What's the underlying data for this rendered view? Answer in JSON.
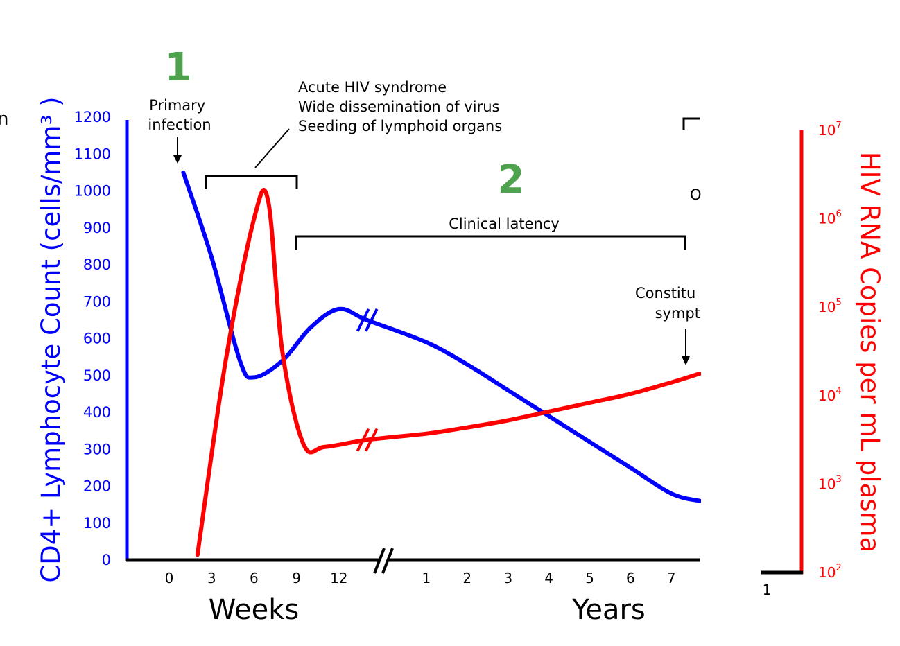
{
  "page": {
    "edge_glyph": "n",
    "step_one": "1",
    "step_two": "2"
  },
  "annotations": {
    "primary_infection": [
      "Primary",
      "infection"
    ],
    "acute": [
      "Acute HIV syndrome",
      "Wide dissemination of virus",
      "Seeding of lymphoid organs"
    ],
    "clinical_latency": "Clinical latency",
    "constitutional": [
      "Constitu",
      "sympt"
    ],
    "cut_right_label": "O",
    "right_fragment_tick": "1"
  },
  "colors": {
    "cd4": "#0000ff",
    "rna": "#ff0000",
    "axis": "#000000",
    "step_numbers": "#4ea24e"
  },
  "chart_data": {
    "type": "line",
    "xlabel_weeks": "Weeks",
    "xlabel_years": "Years",
    "ylabel_left": "CD4+ Lymphocyte Count (cells/mm³ )",
    "ylabel_right": "HIV RNA Copies per mL plasma",
    "x_ticks_weeks": [
      "0",
      "3",
      "6",
      "9",
      "12"
    ],
    "x_ticks_years": [
      "1",
      "2",
      "3",
      "4",
      "5",
      "6",
      "7"
    ],
    "ylim_left": [
      0,
      1200
    ],
    "y_ticks_left": [
      "0",
      "100",
      "200",
      "300",
      "400",
      "500",
      "600",
      "700",
      "800",
      "900",
      "1000",
      "1100",
      "1200"
    ],
    "y_ticks_right": [
      {
        "base": "10",
        "exp": "2"
      },
      {
        "base": "10",
        "exp": "3"
      },
      {
        "base": "10",
        "exp": "4"
      },
      {
        "base": "10",
        "exp": "5"
      },
      {
        "base": "10",
        "exp": "6"
      },
      {
        "base": "10",
        "exp": "7"
      }
    ],
    "series": [
      {
        "key": "cd4",
        "axis": "left",
        "points": [
          {
            "segment": "weeks",
            "x": 1,
            "y": 1050
          },
          {
            "segment": "weeks",
            "x": 3,
            "y": 820
          },
          {
            "segment": "weeks",
            "x": 5,
            "y": 540
          },
          {
            "segment": "weeks",
            "x": 6,
            "y": 495
          },
          {
            "segment": "weeks",
            "x": 8,
            "y": 540
          },
          {
            "segment": "weeks",
            "x": 10,
            "y": 630
          },
          {
            "segment": "weeks",
            "x": 12,
            "y": 680
          },
          {
            "segment": "weeks",
            "x": 14,
            "y": 650
          },
          {
            "segment": "years",
            "x": 1,
            "y": 590
          },
          {
            "segment": "years",
            "x": 2,
            "y": 530
          },
          {
            "segment": "years",
            "x": 3,
            "y": 460
          },
          {
            "segment": "years",
            "x": 4,
            "y": 390
          },
          {
            "segment": "years",
            "x": 5,
            "y": 320
          },
          {
            "segment": "years",
            "x": 6,
            "y": 250
          },
          {
            "segment": "years",
            "x": 7,
            "y": 180
          },
          {
            "segment": "years",
            "x": 7.7,
            "y": 160
          }
        ]
      },
      {
        "key": "rna",
        "axis": "right_log10",
        "points": [
          {
            "segment": "weeks",
            "x": 2,
            "y": 2.2
          },
          {
            "segment": "weeks",
            "x": 4,
            "y": 4.4
          },
          {
            "segment": "weeks",
            "x": 6,
            "y": 6.0
          },
          {
            "segment": "weeks",
            "x": 7,
            "y": 6.2
          },
          {
            "segment": "weeks",
            "x": 8,
            "y": 4.5
          },
          {
            "segment": "weeks",
            "x": 9.5,
            "y": 3.45
          },
          {
            "segment": "weeks",
            "x": 11,
            "y": 3.42
          },
          {
            "segment": "weeks",
            "x": 14,
            "y": 3.5
          },
          {
            "segment": "years",
            "x": 1,
            "y": 3.57
          },
          {
            "segment": "years",
            "x": 2,
            "y": 3.64
          },
          {
            "segment": "years",
            "x": 3,
            "y": 3.72
          },
          {
            "segment": "years",
            "x": 4,
            "y": 3.82
          },
          {
            "segment": "years",
            "x": 5,
            "y": 3.92
          },
          {
            "segment": "years",
            "x": 6,
            "y": 4.02
          },
          {
            "segment": "years",
            "x": 7,
            "y": 4.15
          },
          {
            "segment": "years",
            "x": 7.7,
            "y": 4.25
          }
        ]
      }
    ]
  }
}
